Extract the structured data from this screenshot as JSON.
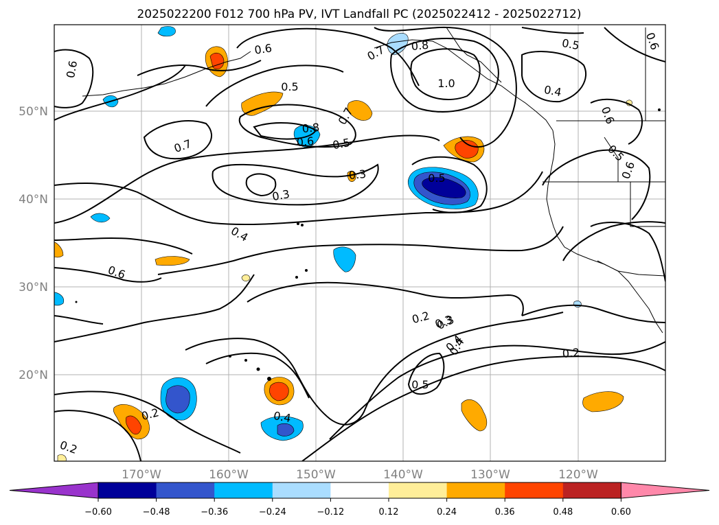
{
  "title": "2025022200 F012 700 hPa PV, IVT Landfall PC (2025022412 - 2025022712)",
  "lat_labels": [
    "50°N",
    "40°N",
    "30°N",
    "20°N"
  ],
  "lon_labels": [
    "170°W",
    "160°W",
    "150°W",
    "140°W",
    "130°W",
    "120°W"
  ],
  "colorbar": {
    "ticks": [
      "−0.60",
      "−0.48",
      "−0.36",
      "−0.24",
      "−0.12",
      "0.12",
      "0.24",
      "0.36",
      "0.48",
      "0.60"
    ],
    "colors": [
      "#9933cc",
      "#000099",
      "#3355cc",
      "#00bbff",
      "#aaddff",
      "#ffffff",
      "#ffee99",
      "#ffaa00",
      "#ff4400",
      "#bb2222",
      "#ff88aa"
    ]
  },
  "contour_labels": [
    "0.6",
    "0.6",
    "0.5",
    "0.7",
    "0.8",
    "1.0",
    "0.6",
    "0.5",
    "0.4",
    "0.4",
    "0.6",
    "0.7",
    "0.5",
    "0.8",
    "0.6",
    "0.7",
    "0.5",
    "0.5",
    "0.6",
    "0.3",
    "0.3",
    "0.6",
    "0.4",
    "0.3",
    "0.2",
    "0.3",
    "0.4",
    "0.2",
    "0.5",
    "0.2",
    "0.4",
    "0.2"
  ]
}
